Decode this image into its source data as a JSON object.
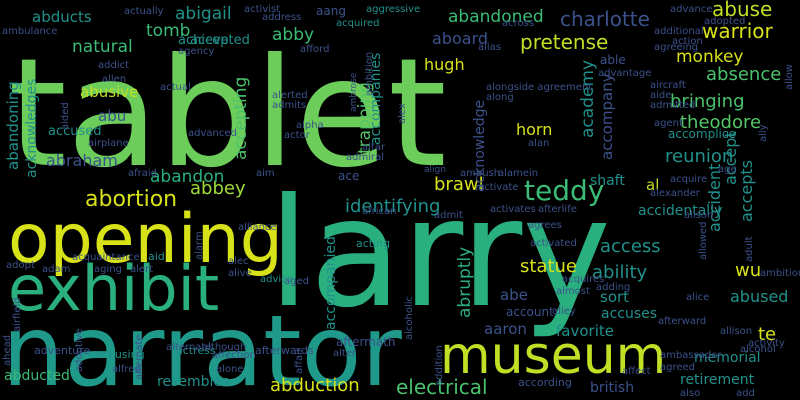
{
  "background": "#000000",
  "palette": {
    "yellow": "#d8e219",
    "lime": "#a0da39",
    "green": "#4ac16d",
    "mint": "#55c667",
    "teal": "#1fa187",
    "cyan": "#21918c",
    "blue": "#2c728e",
    "indigo": "#3b528b",
    "purple": "#472d7b",
    "darkpurple": "#440154"
  },
  "words": [
    "tablet",
    "larry",
    "narrator",
    "opening",
    "exhibit",
    "museum",
    "teddy",
    "abortion",
    "abduction",
    "electrical",
    "pretense",
    "charlotte",
    "abuse",
    "warrior",
    "theodore",
    "reunion",
    "bringing",
    "absence",
    "monkey",
    "academy",
    "accompany",
    "accept",
    "accepts",
    "accident",
    "accidentally",
    "access",
    "ability",
    "statue",
    "abruptly",
    "identifying",
    "brawl",
    "abbey",
    "abandon",
    "abraham",
    "accused",
    "abu",
    "abusive",
    "natural",
    "tomb",
    "abigail",
    "abby",
    "aang",
    "abandoned",
    "abducts",
    "abducted",
    "resembles",
    "british",
    "retirement",
    "memorial",
    "favorite",
    "aaron",
    "abe",
    "sort",
    "accuses",
    "abused",
    "wu",
    "te",
    "accomplice",
    "acknowledge",
    "horn",
    "hugh",
    "aboard",
    "accompanies",
    "trapping",
    "accepting",
    "abandoning",
    "acknowledges",
    "accompanied",
    "accepted",
    "achieve",
    "al",
    "shaft",
    "able",
    "ace",
    "account",
    "according",
    "accusing",
    "actress",
    "afterwards",
    "adventure",
    "advice",
    "adopt",
    "acting",
    "actually",
    "activist",
    "address",
    "aggressive",
    "acquired",
    "across",
    "advance",
    "adopted",
    "ambulance",
    "agency",
    "additional",
    "agreeing",
    "action",
    "allow",
    "advantage",
    "alias",
    "addict",
    "allen",
    "aided",
    "aircraft",
    "admitted",
    "aide",
    "actual",
    "alex",
    "alongside agreement",
    "along",
    "ambrose",
    "ambition",
    "afford",
    "alerted",
    "admits",
    "airplane",
    "advanced",
    "actor",
    "alpha",
    "agent",
    "ally",
    "altar",
    "admiral",
    "align",
    "ambush",
    "alamein",
    "alan",
    "age",
    "acquire",
    "alexander",
    "afraid",
    "aim",
    "african",
    "afterlife",
    "activates",
    "activate",
    "admit",
    "agrees",
    "alarm",
    "alliance",
    "alec",
    "alive",
    "adam",
    "aging",
    "alert",
    "aid",
    "acquaintance",
    "activated",
    "acquires",
    "adding",
    "almost",
    "alice",
    "alison",
    "allowed",
    "adult",
    "ambitious",
    "aged",
    "alley",
    "alcoholic",
    "airfield",
    "adoptive",
    "alternate",
    "affection",
    "affair",
    "alter",
    "although",
    "alone",
    "alfred",
    "ahead",
    "agreed",
    "ambassador",
    "affect",
    "activity",
    "alcohol",
    "allison",
    "also",
    "add",
    "addition",
    "aftermath",
    "afterward",
    "advises",
    "absent",
    "admission",
    "adjacent",
    "ad",
    "allen"
  ]
}
